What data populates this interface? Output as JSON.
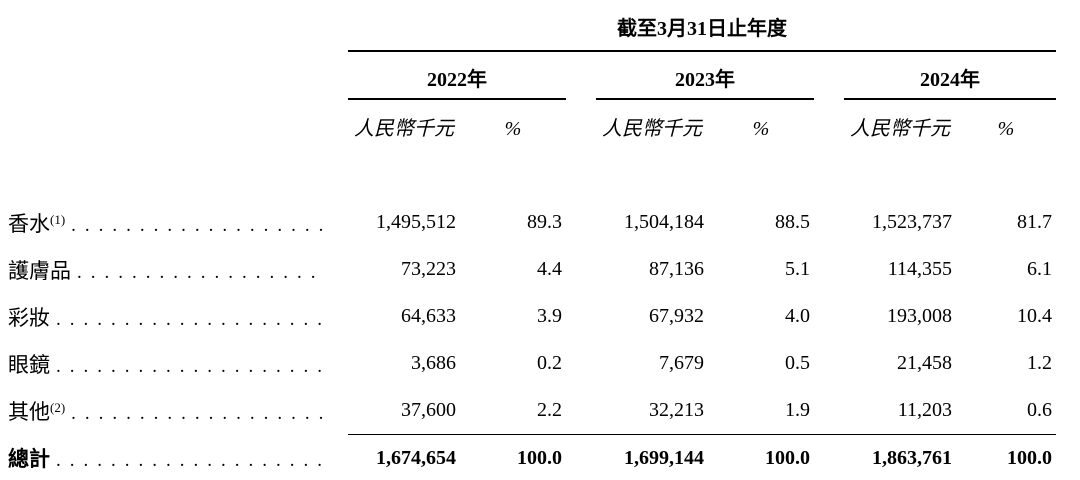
{
  "table": {
    "period_header": "截至3月31日止年度",
    "years": [
      "2022年",
      "2023年",
      "2024年"
    ],
    "columns": {
      "amount": "人民幣千元",
      "percent": "%"
    },
    "rows": [
      {
        "label": "香水",
        "note": "(1)",
        "v": [
          "1,495,512",
          "89.3",
          "1,504,184",
          "88.5",
          "1,523,737",
          "81.7"
        ]
      },
      {
        "label": "護膚品",
        "note": "",
        "v": [
          "73,223",
          "4.4",
          "87,136",
          "5.1",
          "114,355",
          "6.1"
        ]
      },
      {
        "label": "彩妝",
        "note": "",
        "v": [
          "64,633",
          "3.9",
          "67,932",
          "4.0",
          "193,008",
          "10.4"
        ]
      },
      {
        "label": "眼鏡",
        "note": "",
        "v": [
          "3,686",
          "0.2",
          "7,679",
          "0.5",
          "21,458",
          "1.2"
        ]
      },
      {
        "label": "其他",
        "note": "(2)",
        "v": [
          "37,600",
          "2.2",
          "32,213",
          "1.9",
          "11,203",
          "0.6"
        ]
      }
    ],
    "total": {
      "label": "總計",
      "v": [
        "1,674,654",
        "100.0",
        "1,699,144",
        "100.0",
        "1,863,761",
        "100.0"
      ]
    }
  }
}
